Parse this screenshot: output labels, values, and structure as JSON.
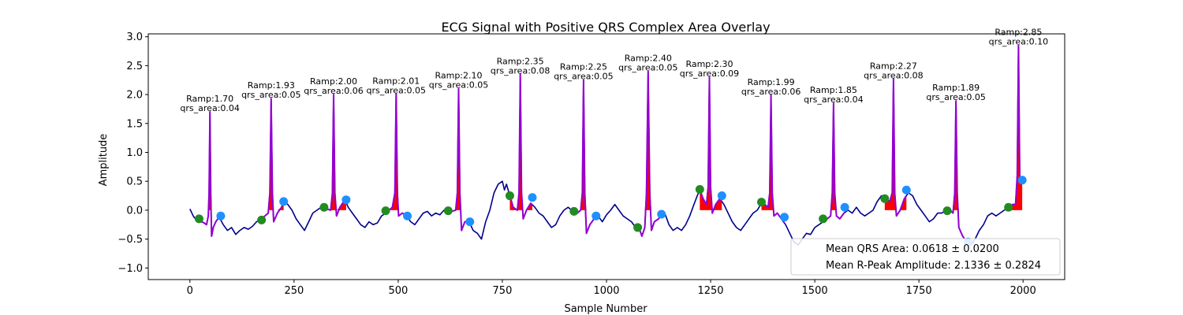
{
  "chart_data": {
    "type": "line",
    "title": "ECG Signal with Positive QRS Complex Area Overlay",
    "xlabel": "Sample Number",
    "ylabel": "Amplitude",
    "xlim": [
      -100,
      2100
    ],
    "ylim": [
      -1.2,
      3.05
    ],
    "xticks": [
      0,
      250,
      500,
      750,
      1000,
      1250,
      1500,
      1750,
      2000
    ],
    "yticks": [
      -1.0,
      -0.5,
      0.0,
      0.5,
      1.0,
      1.5,
      2.0,
      2.5,
      3.0
    ],
    "xtick_labels": [
      "0",
      "250",
      "500",
      "750",
      "1000",
      "1250",
      "1500",
      "1750",
      "2000"
    ],
    "ytick_labels": [
      "−1.0",
      "−0.5",
      "0.0",
      "0.5",
      "1.0",
      "1.5",
      "2.0",
      "2.5",
      "3.0"
    ],
    "grid": false,
    "colors": {
      "signal": "#00008b",
      "qrs_segment": "#9400d3",
      "area_fill": "#ff0000",
      "q_marker": "#228b22",
      "s_marker": "#1e90ff"
    },
    "signal": [
      [
        0,
        0.02
      ],
      [
        8,
        -0.1
      ],
      [
        16,
        -0.18
      ],
      [
        22,
        -0.15
      ],
      [
        28,
        -0.2
      ],
      [
        34,
        -0.22
      ],
      [
        40,
        -0.25
      ],
      [
        44,
        -0.1
      ],
      [
        46,
        0.3
      ],
      [
        48,
        1.7
      ],
      [
        50,
        0.3
      ],
      [
        52,
        -0.45
      ],
      [
        56,
        -0.3
      ],
      [
        62,
        -0.2
      ],
      [
        70,
        -0.12
      ],
      [
        80,
        -0.25
      ],
      [
        90,
        -0.35
      ],
      [
        100,
        -0.3
      ],
      [
        110,
        -0.42
      ],
      [
        120,
        -0.35
      ],
      [
        130,
        -0.3
      ],
      [
        140,
        -0.33
      ],
      [
        150,
        -0.28
      ],
      [
        160,
        -0.2
      ],
      [
        170,
        -0.16
      ],
      [
        180,
        -0.1
      ],
      [
        188,
        -0.05
      ],
      [
        192,
        0.3
      ],
      [
        195,
        1.93
      ],
      [
        198,
        0.3
      ],
      [
        201,
        -0.2
      ],
      [
        210,
        -0.05
      ],
      [
        220,
        0.05
      ],
      [
        225,
        0.15
      ],
      [
        235,
        0.1
      ],
      [
        245,
        0.0
      ],
      [
        255,
        -0.15
      ],
      [
        265,
        -0.25
      ],
      [
        275,
        -0.35
      ],
      [
        285,
        -0.2
      ],
      [
        295,
        -0.05
      ],
      [
        305,
        0.0
      ],
      [
        315,
        0.05
      ],
      [
        322,
        0.05
      ],
      [
        330,
        0.02
      ],
      [
        338,
        0.0
      ],
      [
        342,
        0.3
      ],
      [
        345,
        2.0
      ],
      [
        348,
        0.3
      ],
      [
        352,
        -0.1
      ],
      [
        360,
        0.05
      ],
      [
        372,
        0.18
      ],
      [
        380,
        0.05
      ],
      [
        390,
        -0.05
      ],
      [
        400,
        -0.15
      ],
      [
        410,
        -0.25
      ],
      [
        420,
        -0.3
      ],
      [
        430,
        -0.2
      ],
      [
        440,
        -0.25
      ],
      [
        450,
        -0.22
      ],
      [
        460,
        -0.1
      ],
      [
        470,
        -0.05
      ],
      [
        478,
        0.0
      ],
      [
        486,
        0.05
      ],
      [
        492,
        0.3
      ],
      [
        495,
        2.01
      ],
      [
        498,
        0.3
      ],
      [
        501,
        -0.1
      ],
      [
        510,
        -0.05
      ],
      [
        520,
        -0.1
      ],
      [
        530,
        -0.2
      ],
      [
        540,
        -0.25
      ],
      [
        550,
        -0.15
      ],
      [
        560,
        -0.05
      ],
      [
        570,
        -0.02
      ],
      [
        580,
        -0.1
      ],
      [
        590,
        -0.05
      ],
      [
        600,
        -0.08
      ],
      [
        610,
        0.0
      ],
      [
        618,
        0.02
      ],
      [
        628,
        -0.02
      ],
      [
        638,
        0.0
      ],
      [
        642,
        0.3
      ],
      [
        645,
        2.1
      ],
      [
        648,
        0.3
      ],
      [
        652,
        -0.35
      ],
      [
        660,
        -0.2
      ],
      [
        670,
        -0.2
      ],
      [
        680,
        -0.35
      ],
      [
        690,
        -0.4
      ],
      [
        700,
        -0.5
      ],
      [
        710,
        -0.2
      ],
      [
        720,
        0.0
      ],
      [
        730,
        0.3
      ],
      [
        740,
        0.45
      ],
      [
        750,
        0.5
      ],
      [
        755,
        0.35
      ],
      [
        760,
        0.45
      ],
      [
        768,
        0.25
      ],
      [
        776,
        0.05
      ],
      [
        786,
        0.0
      ],
      [
        790,
        0.3
      ],
      [
        793,
        2.35
      ],
      [
        796,
        0.3
      ],
      [
        800,
        -0.15
      ],
      [
        808,
        0.0
      ],
      [
        818,
        0.12
      ],
      [
        828,
        0.05
      ],
      [
        838,
        -0.05
      ],
      [
        848,
        -0.1
      ],
      [
        858,
        -0.2
      ],
      [
        868,
        -0.3
      ],
      [
        878,
        -0.25
      ],
      [
        888,
        -0.1
      ],
      [
        898,
        0.0
      ],
      [
        908,
        0.05
      ],
      [
        920,
        -0.02
      ],
      [
        930,
        -0.05
      ],
      [
        938,
        0.0
      ],
      [
        942,
        0.3
      ],
      [
        945,
        2.25
      ],
      [
        948,
        0.3
      ],
      [
        952,
        -0.4
      ],
      [
        960,
        -0.25
      ],
      [
        970,
        -0.15
      ],
      [
        980,
        -0.1
      ],
      [
        990,
        -0.2
      ],
      [
        1000,
        -0.08
      ],
      [
        1010,
        0.0
      ],
      [
        1020,
        0.1
      ],
      [
        1030,
        0.0
      ],
      [
        1040,
        -0.1
      ],
      [
        1050,
        -0.15
      ],
      [
        1060,
        -0.2
      ],
      [
        1070,
        -0.3
      ],
      [
        1078,
        -0.3
      ],
      [
        1085,
        -0.45
      ],
      [
        1092,
        -0.3
      ],
      [
        1096,
        0.3
      ],
      [
        1100,
        2.4
      ],
      [
        1104,
        0.3
      ],
      [
        1108,
        -0.35
      ],
      [
        1115,
        -0.2
      ],
      [
        1125,
        -0.15
      ],
      [
        1132,
        -0.08
      ],
      [
        1140,
        -0.05
      ],
      [
        1150,
        -0.25
      ],
      [
        1160,
        -0.35
      ],
      [
        1170,
        -0.3
      ],
      [
        1180,
        -0.35
      ],
      [
        1190,
        -0.25
      ],
      [
        1200,
        -0.1
      ],
      [
        1210,
        0.1
      ],
      [
        1218,
        0.25
      ],
      [
        1224,
        0.35
      ],
      [
        1232,
        0.2
      ],
      [
        1240,
        0.1
      ],
      [
        1244,
        0.4
      ],
      [
        1247,
        2.3
      ],
      [
        1250,
        0.4
      ],
      [
        1254,
        -0.05
      ],
      [
        1262,
        0.1
      ],
      [
        1272,
        0.2
      ],
      [
        1282,
        0.1
      ],
      [
        1292,
        -0.05
      ],
      [
        1302,
        -0.2
      ],
      [
        1312,
        -0.3
      ],
      [
        1322,
        -0.35
      ],
      [
        1332,
        -0.25
      ],
      [
        1342,
        -0.15
      ],
      [
        1352,
        -0.05
      ],
      [
        1362,
        0.0
      ],
      [
        1372,
        0.12
      ],
      [
        1380,
        0.1
      ],
      [
        1388,
        0.05
      ],
      [
        1392,
        0.3
      ],
      [
        1395,
        1.99
      ],
      [
        1398,
        0.3
      ],
      [
        1402,
        -0.1
      ],
      [
        1410,
        -0.05
      ],
      [
        1420,
        -0.15
      ],
      [
        1430,
        -0.25
      ],
      [
        1440,
        -0.4
      ],
      [
        1450,
        -0.55
      ],
      [
        1460,
        -0.6
      ],
      [
        1470,
        -0.5
      ],
      [
        1480,
        -0.4
      ],
      [
        1490,
        -0.42
      ],
      [
        1500,
        -0.3
      ],
      [
        1510,
        -0.25
      ],
      [
        1520,
        -0.2
      ],
      [
        1530,
        -0.15
      ],
      [
        1538,
        -0.1
      ],
      [
        1542,
        0.3
      ],
      [
        1545,
        1.85
      ],
      [
        1548,
        0.3
      ],
      [
        1552,
        -0.1
      ],
      [
        1560,
        -0.15
      ],
      [
        1570,
        -0.05
      ],
      [
        1580,
        0.0
      ],
      [
        1590,
        -0.05
      ],
      [
        1600,
        0.05
      ],
      [
        1610,
        -0.05
      ],
      [
        1620,
        -0.1
      ],
      [
        1630,
        -0.05
      ],
      [
        1640,
        0.0
      ],
      [
        1650,
        0.15
      ],
      [
        1660,
        0.25
      ],
      [
        1670,
        0.2
      ],
      [
        1680,
        0.15
      ],
      [
        1686,
        0.3
      ],
      [
        1689,
        2.27
      ],
      [
        1692,
        0.3
      ],
      [
        1696,
        -0.1
      ],
      [
        1705,
        0.0
      ],
      [
        1715,
        0.2
      ],
      [
        1725,
        0.3
      ],
      [
        1735,
        0.25
      ],
      [
        1745,
        0.1
      ],
      [
        1755,
        0.0
      ],
      [
        1765,
        -0.1
      ],
      [
        1775,
        -0.2
      ],
      [
        1785,
        -0.15
      ],
      [
        1795,
        -0.05
      ],
      [
        1805,
        -0.05
      ],
      [
        1815,
        0.0
      ],
      [
        1825,
        0.0
      ],
      [
        1832,
        -0.05
      ],
      [
        1836,
        0.3
      ],
      [
        1839,
        1.89
      ],
      [
        1842,
        0.3
      ],
      [
        1846,
        -0.3
      ],
      [
        1855,
        -0.45
      ],
      [
        1865,
        -0.55
      ],
      [
        1875,
        -0.6
      ],
      [
        1885,
        -0.5
      ],
      [
        1895,
        -0.35
      ],
      [
        1905,
        -0.25
      ],
      [
        1915,
        -0.1
      ],
      [
        1925,
        -0.05
      ],
      [
        1935,
        -0.1
      ],
      [
        1945,
        -0.05
      ],
      [
        1955,
        0.0
      ],
      [
        1965,
        0.05
      ],
      [
        1975,
        0.1
      ],
      [
        1982,
        0.1
      ],
      [
        1986,
        0.6
      ],
      [
        1989,
        2.85
      ],
      [
        1992,
        0.6
      ],
      [
        1995,
        0.52
      ],
      [
        1998,
        0.5
      ],
      [
        2000,
        0.45
      ]
    ],
    "beats": [
      {
        "r_x": 48,
        "r_amp": 1.7,
        "qrs_area": 0.04,
        "q": [
          22,
          -0.15
        ],
        "s": [
          74,
          -0.1
        ],
        "label_amp": "Ramp:1.70",
        "label_area": "qrs_area:0.04"
      },
      {
        "r_x": 195,
        "r_amp": 1.93,
        "qrs_area": 0.05,
        "q": [
          172,
          -0.17
        ],
        "s": [
          225,
          0.15
        ],
        "label_amp": "Ramp:1.93",
        "label_area": "qrs_area:0.05"
      },
      {
        "r_x": 345,
        "r_amp": 2.0,
        "qrs_area": 0.06,
        "q": [
          322,
          0.05
        ],
        "s": [
          375,
          0.18
        ],
        "label_amp": "Ramp:2.00",
        "label_area": "qrs_area:0.06"
      },
      {
        "r_x": 495,
        "r_amp": 2.01,
        "qrs_area": 0.05,
        "q": [
          470,
          -0.01
        ],
        "s": [
          522,
          -0.1
        ],
        "label_amp": "Ramp:2.01",
        "label_area": "qrs_area:0.05"
      },
      {
        "r_x": 645,
        "r_amp": 2.1,
        "qrs_area": 0.05,
        "q": [
          620,
          -0.01
        ],
        "s": [
          672,
          -0.2
        ],
        "label_amp": "Ramp:2.10",
        "label_area": "qrs_area:0.05"
      },
      {
        "r_x": 793,
        "r_amp": 2.35,
        "qrs_area": 0.08,
        "q": [
          768,
          0.25
        ],
        "s": [
          822,
          0.22
        ],
        "label_amp": "Ramp:2.35",
        "label_area": "qrs_area:0.08"
      },
      {
        "r_x": 945,
        "r_amp": 2.25,
        "qrs_area": 0.05,
        "q": [
          922,
          -0.02
        ],
        "s": [
          975,
          -0.1
        ],
        "label_amp": "Ramp:2.25",
        "label_area": "qrs_area:0.05"
      },
      {
        "r_x": 1100,
        "r_amp": 2.4,
        "qrs_area": 0.05,
        "q": [
          1075,
          -0.3
        ],
        "s": [
          1132,
          -0.07
        ],
        "label_amp": "Ramp:2.40",
        "label_area": "qrs_area:0.05"
      },
      {
        "r_x": 1247,
        "r_amp": 2.3,
        "qrs_area": 0.09,
        "q": [
          1224,
          0.36
        ],
        "s": [
          1277,
          0.25
        ],
        "label_amp": "Ramp:2.30",
        "label_area": "qrs_area:0.09"
      },
      {
        "r_x": 1395,
        "r_amp": 1.99,
        "qrs_area": 0.06,
        "q": [
          1372,
          0.14
        ],
        "s": [
          1427,
          -0.12
        ],
        "label_amp": "Ramp:1.99",
        "label_area": "qrs_area:0.06"
      },
      {
        "r_x": 1545,
        "r_amp": 1.85,
        "qrs_area": 0.04,
        "q": [
          1520,
          -0.15
        ],
        "s": [
          1572,
          0.05
        ],
        "label_amp": "Ramp:1.85",
        "label_area": "qrs_area:0.04"
      },
      {
        "r_x": 1689,
        "r_amp": 2.27,
        "qrs_area": 0.08,
        "q": [
          1668,
          0.2
        ],
        "s": [
          1720,
          0.35
        ],
        "label_amp": "Ramp:2.27",
        "label_area": "qrs_area:0.08"
      },
      {
        "r_x": 1839,
        "r_amp": 1.89,
        "qrs_area": 0.05,
        "q": [
          1818,
          -0.01
        ],
        "s": [
          1868,
          -0.55
        ],
        "label_amp": "Ramp:1.89",
        "label_area": "qrs_area:0.05"
      },
      {
        "r_x": 1989,
        "r_amp": 2.85,
        "qrs_area": 0.1,
        "q": [
          1965,
          0.05
        ],
        "s": [
          1998,
          0.52
        ],
        "label_amp": "Ramp:2.85",
        "label_area": "qrs_area:0.10"
      }
    ],
    "legend": {
      "position": "lower right",
      "entries": [
        "Mean QRS Area: 0.0618 ± 0.0200",
        "Mean R-Peak Amplitude: 2.1336 ± 0.2824"
      ]
    }
  }
}
